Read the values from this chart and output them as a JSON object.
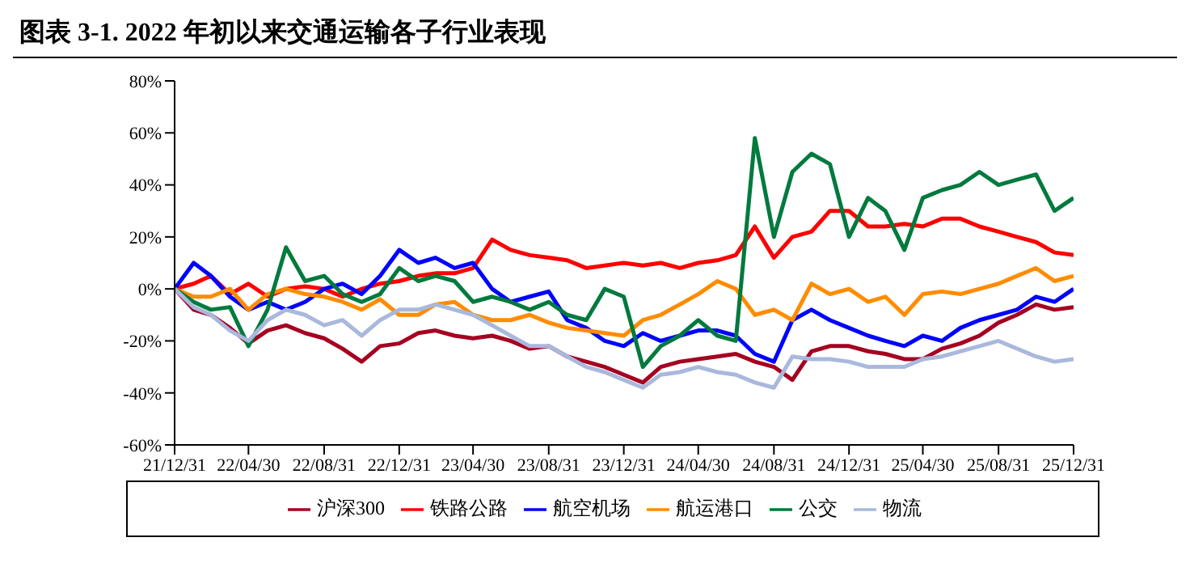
{
  "chart_data": {
    "type": "line",
    "title": "图表 3-1. 2022 年初以来交通运输各子行业表现",
    "x": [
      "2021-12-31",
      "2022-01-31",
      "2022-02-28",
      "2022-03-31",
      "2022-04-30",
      "2022-05-31",
      "2022-06-30",
      "2022-07-31",
      "2022-08-31",
      "2022-09-30",
      "2022-10-31",
      "2022-11-30",
      "2022-12-31",
      "2023-01-31",
      "2023-02-28",
      "2023-03-31",
      "2023-04-30",
      "2023-05-31",
      "2023-06-30",
      "2023-07-31",
      "2023-08-31",
      "2023-09-30",
      "2023-10-31",
      "2023-11-30",
      "2023-12-31",
      "2024-01-31",
      "2024-02-29",
      "2024-03-31",
      "2024-04-30",
      "2024-05-31",
      "2024-06-30",
      "2024-07-31",
      "2024-08-31",
      "2024-09-30",
      "2024-10-31",
      "2024-11-30",
      "2024-12-31",
      "2025-01-31",
      "2025-02-28",
      "2025-03-31",
      "2025-04-30",
      "2025-05-31",
      "2025-06-30",
      "2025-07-31",
      "2025-08-31",
      "2025-09-30",
      "2025-10-31",
      "2025-11-30",
      "2025-12-31"
    ],
    "series": [
      {
        "name": "沪深300",
        "color": "#a50021",
        "values": [
          0,
          -8,
          -10,
          -15,
          -21,
          -16,
          -14,
          -17,
          -19,
          -23,
          -28,
          -22,
          -21,
          -17,
          -16,
          -18,
          -19,
          -18,
          -20,
          -23,
          -22,
          -26,
          -28,
          -30,
          -33,
          -36,
          -30,
          -28,
          -27,
          -26,
          -25,
          -28,
          -30,
          -35,
          -24,
          -22,
          -22,
          -24,
          -25,
          -27,
          -27,
          -23,
          -21,
          -18,
          -13,
          -10,
          -6,
          -8,
          -7
        ]
      },
      {
        "name": "铁路公路",
        "color": "#ff0000",
        "values": [
          0,
          2,
          5,
          -2,
          2,
          -3,
          0,
          1,
          0,
          -3,
          0,
          2,
          3,
          5,
          6,
          6,
          8,
          19,
          15,
          13,
          12,
          11,
          8,
          9,
          10,
          9,
          10,
          8,
          10,
          11,
          13,
          24,
          12,
          20,
          22,
          30,
          30,
          24,
          24,
          25,
          24,
          27,
          27,
          24,
          22,
          20,
          18,
          14,
          13
        ]
      },
      {
        "name": "航空机场",
        "color": "#0000ff",
        "values": [
          0,
          10,
          5,
          -3,
          -8,
          -5,
          -8,
          -5,
          0,
          2,
          -2,
          5,
          15,
          10,
          12,
          8,
          10,
          0,
          -5,
          -3,
          -1,
          -12,
          -15,
          -20,
          -22,
          -17,
          -20,
          -18,
          -16,
          -16,
          -18,
          -25,
          -28,
          -12,
          -8,
          -12,
          -15,
          -18,
          -20,
          -22,
          -18,
          -20,
          -15,
          -12,
          -10,
          -8,
          -3,
          -5,
          0
        ]
      },
      {
        "name": "航运港口",
        "color": "#ff8c00",
        "values": [
          0,
          -3,
          -3,
          0,
          -8,
          -2,
          0,
          -2,
          -3,
          -5,
          -8,
          -4,
          -10,
          -10,
          -6,
          -5,
          -10,
          -12,
          -12,
          -10,
          -13,
          -15,
          -16,
          -17,
          -18,
          -12,
          -10,
          -6,
          -2,
          3,
          0,
          -10,
          -8,
          -12,
          2,
          -2,
          0,
          -5,
          -3,
          -10,
          -2,
          -1,
          -2,
          0,
          2,
          5,
          8,
          3,
          5
        ]
      },
      {
        "name": "公交",
        "color": "#007a3d",
        "values": [
          0,
          -5,
          -8,
          -7,
          -22,
          -8,
          16,
          3,
          5,
          -2,
          -5,
          -2,
          8,
          3,
          5,
          3,
          -5,
          -3,
          -5,
          -8,
          -5,
          -10,
          -12,
          0,
          -3,
          -30,
          -22,
          -18,
          -12,
          -18,
          -20,
          58,
          20,
          45,
          52,
          48,
          20,
          35,
          30,
          15,
          35,
          38,
          40,
          45,
          40,
          42,
          44,
          30,
          35
        ]
      },
      {
        "name": "物流",
        "color": "#a9b8dc",
        "values": [
          0,
          -7,
          -10,
          -16,
          -20,
          -12,
          -8,
          -10,
          -14,
          -12,
          -18,
          -12,
          -8,
          -8,
          -6,
          -8,
          -10,
          -14,
          -18,
          -22,
          -22,
          -26,
          -30,
          -32,
          -35,
          -38,
          -33,
          -32,
          -30,
          -32,
          -33,
          -36,
          -38,
          -26,
          -27,
          -27,
          -28,
          -30,
          -30,
          -30,
          -27,
          -26,
          -24,
          -22,
          -20,
          -23,
          -26,
          -28,
          -27
        ]
      }
    ],
    "xlim": [
      "2021-12-31",
      "2025-12-31"
    ],
    "xticks": [
      {
        "value": "2021-12-31",
        "label": "21/12/31"
      },
      {
        "value": "2022-04-30",
        "label": "22/04/30"
      },
      {
        "value": "2022-08-31",
        "label": "22/08/31"
      },
      {
        "value": "2022-12-31",
        "label": "22/12/31"
      },
      {
        "value": "2023-04-30",
        "label": "23/04/30"
      },
      {
        "value": "2023-08-31",
        "label": "23/08/31"
      },
      {
        "value": "2023-12-31",
        "label": "23/12/31"
      },
      {
        "value": "2024-04-30",
        "label": "24/04/30"
      },
      {
        "value": "2024-08-31",
        "label": "24/08/31"
      },
      {
        "value": "2024-12-31",
        "label": "24/12/31"
      },
      {
        "value": "2025-04-30",
        "label": "25/04/30"
      },
      {
        "value": "2025-08-31",
        "label": "25/08/31"
      },
      {
        "value": "2025-12-31",
        "label": "25/12/31"
      }
    ],
    "ylim": [
      -60,
      80
    ],
    "yticks": [
      {
        "value": -60,
        "label": "-60%"
      },
      {
        "value": -40,
        "label": "-40%"
      },
      {
        "value": -20,
        "label": "-20%"
      },
      {
        "value": 0,
        "label": "0%"
      },
      {
        "value": 20,
        "label": "20%"
      },
      {
        "value": 40,
        "label": "40%"
      },
      {
        "value": 60,
        "label": "60%"
      },
      {
        "value": 80,
        "label": "80%"
      }
    ],
    "legend": "bottom",
    "grid": false,
    "marker": "none",
    "line_style": "solid"
  }
}
